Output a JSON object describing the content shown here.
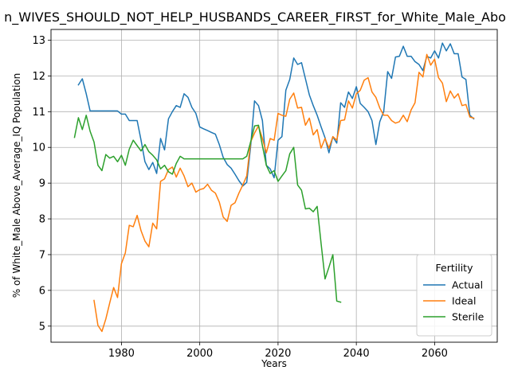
{
  "chart_data": {
    "type": "line",
    "title": "n_WIVES_SHOULD_NOT_HELP_HUSBANDS_CAREER_FIRST_for_White_Male_Abo",
    "xlabel": "Years",
    "ylabel": "% of White_Male Above_Average_IQ Population",
    "xlim": [
      1962,
      2076
    ],
    "ylim": [
      4.55,
      13.3
    ],
    "xticks": [
      1980,
      2000,
      2020,
      2040,
      2060
    ],
    "yticks": [
      5,
      6,
      7,
      8,
      9,
      10,
      11,
      12,
      13
    ],
    "grid": true,
    "legend": {
      "title": "Fertility",
      "position": "lower-right"
    },
    "series": [
      {
        "name": "Actual",
        "color": "#1f77b4",
        "points": [
          [
            1969,
            11.75
          ],
          [
            1970,
            11.92
          ],
          [
            1971,
            11.5
          ],
          [
            1972,
            11.02
          ],
          [
            1974,
            11.02
          ],
          [
            1976,
            11.02
          ],
          [
            1978,
            11.02
          ],
          [
            1979,
            11.02
          ],
          [
            1980,
            10.93
          ],
          [
            1981,
            10.93
          ],
          [
            1982,
            10.75
          ],
          [
            1983,
            10.75
          ],
          [
            1984,
            10.75
          ],
          [
            1985,
            10.2
          ],
          [
            1986,
            9.6
          ],
          [
            1987,
            9.38
          ],
          [
            1988,
            9.58
          ],
          [
            1989,
            9.27
          ],
          [
            1990,
            10.25
          ],
          [
            1991,
            9.93
          ],
          [
            1992,
            10.8
          ],
          [
            1993,
            11.0
          ],
          [
            1994,
            11.17
          ],
          [
            1995,
            11.12
          ],
          [
            1996,
            11.5
          ],
          [
            1997,
            11.4
          ],
          [
            1998,
            11.12
          ],
          [
            1999,
            10.95
          ],
          [
            2000,
            10.57
          ],
          [
            2001,
            10.52
          ],
          [
            2002,
            10.47
          ],
          [
            2003,
            10.42
          ],
          [
            2004,
            10.37
          ],
          [
            2005,
            10.08
          ],
          [
            2006,
            9.72
          ],
          [
            2007,
            9.52
          ],
          [
            2008,
            9.42
          ],
          [
            2009,
            9.25
          ],
          [
            2010,
            9.07
          ],
          [
            2011,
            8.92
          ],
          [
            2012,
            9.02
          ],
          [
            2013,
            10.02
          ],
          [
            2014,
            11.3
          ],
          [
            2015,
            11.17
          ],
          [
            2016,
            10.75
          ],
          [
            2017,
            9.5
          ],
          [
            2018,
            9.4
          ],
          [
            2019,
            9.15
          ],
          [
            2020,
            10.2
          ],
          [
            2021,
            10.3
          ],
          [
            2022,
            11.6
          ],
          [
            2023,
            11.9
          ],
          [
            2024,
            12.5
          ],
          [
            2025,
            12.32
          ],
          [
            2026,
            12.37
          ],
          [
            2027,
            11.92
          ],
          [
            2028,
            11.47
          ],
          [
            2029,
            11.17
          ],
          [
            2030,
            10.9
          ],
          [
            2031,
            10.58
          ],
          [
            2032,
            10.27
          ],
          [
            2033,
            9.85
          ],
          [
            2034,
            10.3
          ],
          [
            2035,
            10.12
          ],
          [
            2036,
            11.25
          ],
          [
            2037,
            11.12
          ],
          [
            2038,
            11.55
          ],
          [
            2039,
            11.37
          ],
          [
            2040,
            11.7
          ],
          [
            2041,
            11.23
          ],
          [
            2042,
            11.12
          ],
          [
            2043,
            11.0
          ],
          [
            2044,
            10.75
          ],
          [
            2045,
            10.08
          ],
          [
            2046,
            10.72
          ],
          [
            2047,
            11.0
          ],
          [
            2048,
            12.12
          ],
          [
            2049,
            11.93
          ],
          [
            2050,
            12.53
          ],
          [
            2051,
            12.55
          ],
          [
            2052,
            12.83
          ],
          [
            2053,
            12.55
          ],
          [
            2054,
            12.55
          ],
          [
            2055,
            12.4
          ],
          [
            2056,
            12.32
          ],
          [
            2057,
            12.15
          ],
          [
            2058,
            12.55
          ],
          [
            2059,
            12.5
          ],
          [
            2060,
            12.7
          ],
          [
            2061,
            12.5
          ],
          [
            2062,
            12.92
          ],
          [
            2063,
            12.7
          ],
          [
            2064,
            12.9
          ],
          [
            2065,
            12.62
          ],
          [
            2066,
            12.62
          ],
          [
            2067,
            11.97
          ],
          [
            2068,
            11.9
          ],
          [
            2069,
            10.9
          ],
          [
            2070,
            10.8
          ]
        ]
      },
      {
        "name": "Ideal",
        "color": "#ff7f0e",
        "points": [
          [
            1973,
            5.72
          ],
          [
            1974,
            5.02
          ],
          [
            1975,
            4.85
          ],
          [
            1976,
            5.2
          ],
          [
            1977,
            5.65
          ],
          [
            1978,
            6.08
          ],
          [
            1979,
            5.8
          ],
          [
            1980,
            6.75
          ],
          [
            1981,
            7.05
          ],
          [
            1982,
            7.82
          ],
          [
            1983,
            7.78
          ],
          [
            1984,
            8.1
          ],
          [
            1985,
            7.67
          ],
          [
            1986,
            7.38
          ],
          [
            1987,
            7.22
          ],
          [
            1988,
            7.88
          ],
          [
            1989,
            7.72
          ],
          [
            1990,
            9.05
          ],
          [
            1991,
            9.12
          ],
          [
            1992,
            9.38
          ],
          [
            1993,
            9.45
          ],
          [
            1994,
            9.17
          ],
          [
            1995,
            9.42
          ],
          [
            1996,
            9.2
          ],
          [
            1997,
            8.9
          ],
          [
            1998,
            9.0
          ],
          [
            1999,
            8.75
          ],
          [
            2000,
            8.82
          ],
          [
            2001,
            8.85
          ],
          [
            2002,
            8.97
          ],
          [
            2003,
            8.8
          ],
          [
            2004,
            8.72
          ],
          [
            2005,
            8.47
          ],
          [
            2006,
            8.05
          ],
          [
            2007,
            7.93
          ],
          [
            2008,
            8.38
          ],
          [
            2009,
            8.45
          ],
          [
            2010,
            8.72
          ],
          [
            2011,
            8.95
          ],
          [
            2012,
            9.2
          ],
          [
            2013,
            10.15
          ],
          [
            2014,
            10.4
          ],
          [
            2015,
            10.6
          ],
          [
            2016,
            10.25
          ],
          [
            2017,
            9.85
          ],
          [
            2018,
            10.25
          ],
          [
            2019,
            10.2
          ],
          [
            2020,
            10.95
          ],
          [
            2021,
            10.9
          ],
          [
            2022,
            10.87
          ],
          [
            2023,
            11.35
          ],
          [
            2024,
            11.52
          ],
          [
            2025,
            11.1
          ],
          [
            2026,
            11.12
          ],
          [
            2027,
            10.62
          ],
          [
            2028,
            10.82
          ],
          [
            2029,
            10.35
          ],
          [
            2030,
            10.5
          ],
          [
            2031,
            9.98
          ],
          [
            2032,
            10.25
          ],
          [
            2033,
            9.98
          ],
          [
            2034,
            10.3
          ],
          [
            2035,
            10.2
          ],
          [
            2036,
            10.75
          ],
          [
            2037,
            10.77
          ],
          [
            2038,
            11.3
          ],
          [
            2039,
            11.1
          ],
          [
            2040,
            11.5
          ],
          [
            2041,
            11.6
          ],
          [
            2042,
            11.88
          ],
          [
            2043,
            11.95
          ],
          [
            2044,
            11.55
          ],
          [
            2045,
            11.4
          ],
          [
            2046,
            11.1
          ],
          [
            2047,
            10.9
          ],
          [
            2048,
            10.9
          ],
          [
            2049,
            10.75
          ],
          [
            2050,
            10.68
          ],
          [
            2051,
            10.72
          ],
          [
            2052,
            10.9
          ],
          [
            2053,
            10.72
          ],
          [
            2054,
            11.05
          ],
          [
            2055,
            11.25
          ],
          [
            2056,
            12.1
          ],
          [
            2057,
            11.97
          ],
          [
            2058,
            12.6
          ],
          [
            2059,
            12.3
          ],
          [
            2060,
            12.47
          ],
          [
            2061,
            11.95
          ],
          [
            2062,
            11.8
          ],
          [
            2063,
            11.28
          ],
          [
            2064,
            11.58
          ],
          [
            2065,
            11.38
          ],
          [
            2066,
            11.5
          ],
          [
            2067,
            11.17
          ],
          [
            2068,
            11.2
          ],
          [
            2069,
            10.85
          ],
          [
            2070,
            10.82
          ]
        ]
      },
      {
        "name": "Sterile",
        "color": "#2ca02c",
        "points": [
          [
            1968,
            10.28
          ],
          [
            1969,
            10.83
          ],
          [
            1970,
            10.5
          ],
          [
            1971,
            10.9
          ],
          [
            1972,
            10.45
          ],
          [
            1973,
            10.15
          ],
          [
            1974,
            9.5
          ],
          [
            1975,
            9.35
          ],
          [
            1976,
            9.8
          ],
          [
            1977,
            9.7
          ],
          [
            1978,
            9.75
          ],
          [
            1979,
            9.6
          ],
          [
            1980,
            9.78
          ],
          [
            1981,
            9.5
          ],
          [
            1982,
            9.95
          ],
          [
            1983,
            10.2
          ],
          [
            1984,
            10.05
          ],
          [
            1985,
            9.9
          ],
          [
            1986,
            10.08
          ],
          [
            1987,
            9.88
          ],
          [
            1988,
            9.78
          ],
          [
            1989,
            9.65
          ],
          [
            1990,
            9.4
          ],
          [
            1991,
            9.5
          ],
          [
            1992,
            9.32
          ],
          [
            1993,
            9.25
          ],
          [
            1994,
            9.55
          ],
          [
            1995,
            9.75
          ],
          [
            1996,
            9.68
          ],
          [
            1998,
            9.68
          ],
          [
            2000,
            9.68
          ],
          [
            2004,
            9.68
          ],
          [
            2008,
            9.68
          ],
          [
            2011,
            9.68
          ],
          [
            2012,
            9.75
          ],
          [
            2013,
            10.15
          ],
          [
            2014,
            10.6
          ],
          [
            2015,
            10.62
          ],
          [
            2016,
            10.05
          ],
          [
            2017,
            9.5
          ],
          [
            2018,
            9.27
          ],
          [
            2019,
            9.35
          ],
          [
            2020,
            9.05
          ],
          [
            2021,
            9.2
          ],
          [
            2022,
            9.35
          ],
          [
            2023,
            9.82
          ],
          [
            2024,
            10.0
          ],
          [
            2025,
            8.95
          ],
          [
            2026,
            8.8
          ],
          [
            2027,
            8.28
          ],
          [
            2028,
            8.3
          ],
          [
            2029,
            8.2
          ],
          [
            2030,
            8.35
          ],
          [
            2031,
            7.32
          ],
          [
            2032,
            6.32
          ],
          [
            2033,
            6.65
          ],
          [
            2034,
            7.0
          ],
          [
            2035,
            5.7
          ],
          [
            2036,
            5.67
          ]
        ]
      }
    ]
  }
}
